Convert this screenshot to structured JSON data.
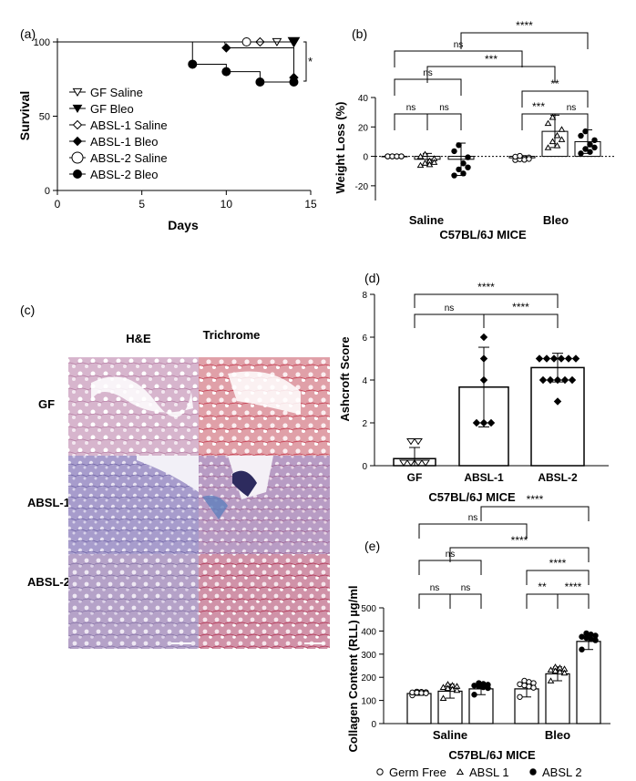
{
  "panels": {
    "a": "(a)",
    "b": "(b)",
    "c": "(c)",
    "d": "(d)",
    "e": "(e)"
  },
  "colors": {
    "tissue_he": "#c9a2bd",
    "tissue_tri": "#d98a98",
    "tissue_he_dark": "#8b84b8",
    "tissue_tri_blue": "#7f8ec0",
    "axis": "#000000"
  },
  "chart_data": [
    {
      "panel": "a",
      "type": "line",
      "xlabel": "Days",
      "ylabel": "Survival",
      "xlim": [
        0,
        15
      ],
      "ylim": [
        0,
        100
      ],
      "xticks": [
        "0",
        "5",
        "10",
        "15"
      ],
      "yticks": [
        "0",
        "50",
        "100"
      ],
      "significance": "*",
      "series": [
        {
          "name": "GF Saline",
          "marker": "triangle-open",
          "x": [
            0,
            14
          ],
          "y": [
            100,
            100
          ],
          "symbols_x": [
            13
          ]
        },
        {
          "name": "GF Bleo",
          "marker": "triangle-filled",
          "x": [
            0,
            14
          ],
          "y": [
            100,
            100
          ],
          "symbols_x": [
            14
          ]
        },
        {
          "name": "ABSL-1 Saline",
          "marker": "diamond-open",
          "x": [
            0,
            14
          ],
          "y": [
            100,
            100
          ],
          "symbols_x": [
            12
          ]
        },
        {
          "name": "ABSL-1 Bleo",
          "marker": "diamond-filled",
          "x": [
            0,
            9.9,
            10,
            14,
            14
          ],
          "y": [
            100,
            100,
            96,
            96,
            76
          ],
          "symbols_x": [
            10,
            14
          ]
        },
        {
          "name": "ABSL-2 Saline",
          "marker": "circle-open",
          "x": [
            0,
            14
          ],
          "y": [
            100,
            100
          ],
          "symbols_x": [
            11.2
          ]
        },
        {
          "name": "ABSL-2 Bleo",
          "marker": "circle-filled",
          "x": [
            0,
            8,
            8,
            10,
            10,
            12,
            12,
            14
          ],
          "y": [
            100,
            100,
            85,
            85,
            80,
            80,
            73,
            73
          ],
          "symbols_x": [
            8,
            10,
            12,
            14
          ]
        }
      ]
    },
    {
      "panel": "b",
      "type": "bar",
      "ylabel": "Weight Loss (%)",
      "xlabel": "C57BL/6J MICE",
      "categories": [
        "Saline",
        "Bleo"
      ],
      "ylim": [
        -30,
        40
      ],
      "yticks": [
        "-20",
        "0",
        "20",
        "40"
      ],
      "groups": [
        "Germ Free",
        "ABSL 1",
        "ABSL 2"
      ],
      "means": [
        [
          0,
          -2,
          -2
        ],
        [
          -1,
          17,
          10
        ]
      ],
      "sd": [
        [
          0,
          4,
          11
        ],
        [
          1.5,
          11,
          8
        ]
      ],
      "brackets": [
        "ns",
        "ns",
        "ns",
        "***",
        "ns",
        "**",
        "***",
        "ns",
        "****"
      ]
    },
    {
      "panel": "d",
      "type": "bar",
      "ylabel": "Ashcroft Score",
      "xlabel": "C57BL/6J MICE",
      "categories": [
        "GF",
        "ABSL-1",
        "ABSL-2"
      ],
      "values": [
        0.33,
        3.67,
        4.58
      ],
      "sd": [
        0.52,
        1.86,
        0.67
      ],
      "ylim": [
        0,
        8
      ],
      "yticks": [
        "0",
        "2",
        "4",
        "6",
        "8"
      ],
      "points": [
        [
          0,
          0,
          0,
          0,
          1,
          1
        ],
        [
          6,
          5,
          4,
          2,
          2,
          2
        ],
        [
          5,
          5,
          5,
          5,
          5,
          5,
          4,
          4,
          4,
          4,
          4,
          3
        ]
      ],
      "brackets": [
        "****",
        "ns",
        "****"
      ]
    },
    {
      "panel": "e",
      "type": "bar",
      "ylabel": "Collagen Content (RLL) µg/ml",
      "xlabel": "C57BL/6J MICE",
      "categories": [
        "Saline",
        "Bleo"
      ],
      "ylim": [
        0,
        500
      ],
      "yticks": [
        "0",
        "100",
        "200",
        "300",
        "400",
        "500"
      ],
      "means": [
        [
          130,
          140,
          150
        ],
        [
          150,
          215,
          355
        ]
      ],
      "sd": [
        [
          8,
          30,
          25
        ],
        [
          35,
          30,
          35
        ]
      ],
      "brackets": [
        "ns",
        "ns",
        "ns",
        "**",
        "****",
        "****",
        "****",
        "ns",
        "****"
      ],
      "legend": [
        {
          "marker": "circle-open",
          "label": "Germ Free"
        },
        {
          "marker": "triangle-open",
          "label": "ABSL 1"
        },
        {
          "marker": "circle-filled",
          "label": "ABSL 2"
        }
      ]
    }
  ],
  "histology": {
    "col1": "H&E",
    "col2": "Trichrome",
    "rows": [
      "GF",
      "ABSL-1",
      "ABSL-2"
    ]
  }
}
